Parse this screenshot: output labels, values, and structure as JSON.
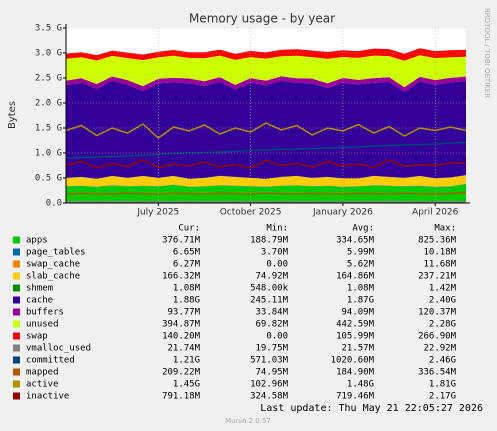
{
  "chart_data": {
    "type": "area",
    "title": "Memory usage - by year",
    "ylabel": "Bytes",
    "side_text": "RRDTOOL / TOBI OETIKER",
    "footer": "Last update: Thu May 21 22:05:27 2026",
    "version": "Munin 2.0.57",
    "categories": [
      null,
      null,
      null,
      null,
      null,
      null,
      "July 2025",
      null,
      null,
      null,
      null,
      null,
      "October 2025",
      null,
      null,
      null,
      null,
      null,
      "January 2026",
      null,
      null,
      null,
      null,
      null,
      "April 2026",
      null,
      null
    ],
    "ylim": [
      0,
      3500000000
    ],
    "yticks": [
      {
        "value": 0,
        "label": "0.0"
      },
      {
        "value": 500000000,
        "label": "0.5 G"
      },
      {
        "value": 1000000000,
        "label": "1.0 G"
      },
      {
        "value": 1500000000,
        "label": "1.5 G"
      },
      {
        "value": 2000000000,
        "label": "2.0 G"
      },
      {
        "value": 2500000000,
        "label": "2.5 G"
      },
      {
        "value": 3000000000,
        "label": "3.0 G"
      },
      {
        "value": 3500000000,
        "label": "3.5 G"
      }
    ],
    "grid": true,
    "summary_headers": [
      "Cur:",
      "Min:",
      "Avg:",
      "Max:"
    ],
    "series": [
      {
        "name": "apps",
        "color": "#00cc00",
        "stacked": true,
        "summary": [
          "376.71M",
          "188.79M",
          "334.65M",
          "825.36M"
        ],
        "values": [
          330000000.0,
          340000000.0,
          320000000.0,
          350000000.0,
          330000000.0,
          340000000.0,
          330000000.0,
          360000000.0,
          320000000.0,
          330000000.0,
          350000000.0,
          340000000.0,
          330000000.0,
          320000000.0,
          340000000.0,
          350000000.0,
          330000000.0,
          340000000.0,
          320000000.0,
          330000000.0,
          350000000.0,
          340000000.0,
          330000000.0,
          340000000.0,
          320000000.0,
          330000000.0,
          377000000.0
        ]
      },
      {
        "name": "page_tables",
        "color": "#0066b3",
        "stacked": true,
        "summary": [
          "6.65M",
          "3.70M",
          "5.99M",
          "10.18M"
        ],
        "values": [
          6000000.0,
          6000000.0,
          6000000.0,
          6000000.0,
          6000000.0,
          6000000.0,
          6000000.0,
          6000000.0,
          6000000.0,
          6000000.0,
          6000000.0,
          6000000.0,
          6000000.0,
          6000000.0,
          6000000.0,
          6000000.0,
          6000000.0,
          6000000.0,
          6000000.0,
          6000000.0,
          6000000.0,
          6000000.0,
          6000000.0,
          6000000.0,
          6000000.0,
          6000000.0,
          6650000.0
        ]
      },
      {
        "name": "swap_cache",
        "color": "#ff8000",
        "stacked": true,
        "summary": [
          "6.27M",
          "0.00",
          "5.62M",
          "11.68M"
        ],
        "values": [
          5000000.0,
          5000000.0,
          6000000.0,
          5000000.0,
          6000000.0,
          5000000.0,
          6000000.0,
          5000000.0,
          6000000.0,
          5000000.0,
          6000000.0,
          5000000.0,
          6000000.0,
          5000000.0,
          6000000.0,
          5000000.0,
          6000000.0,
          5000000.0,
          6000000.0,
          5000000.0,
          6000000.0,
          5000000.0,
          6000000.0,
          5000000.0,
          6000000.0,
          5000000.0,
          6270000.0
        ]
      },
      {
        "name": "slab_cache",
        "color": "#ffcc00",
        "stacked": true,
        "summary": [
          "166.32M",
          "74.92M",
          "164.86M",
          "237.21M"
        ],
        "values": [
          160000000.0,
          170000000.0,
          150000000.0,
          180000000.0,
          160000000.0,
          190000000.0,
          160000000.0,
          170000000.0,
          150000000.0,
          160000000.0,
          180000000.0,
          170000000.0,
          160000000.0,
          150000000.0,
          170000000.0,
          180000000.0,
          160000000.0,
          170000000.0,
          160000000.0,
          150000000.0,
          180000000.0,
          170000000.0,
          160000000.0,
          190000000.0,
          160000000.0,
          170000000.0,
          166000000.0
        ]
      },
      {
        "name": "shmem",
        "color": "#008f00",
        "stacked": true,
        "summary": [
          "1.08M",
          "548.00k",
          "1.08M",
          "1.42M"
        ],
        "values": [
          1000000.0,
          1000000.0,
          1000000.0,
          1000000.0,
          1000000.0,
          1000000.0,
          1000000.0,
          1000000.0,
          1000000.0,
          1000000.0,
          1000000.0,
          1000000.0,
          1000000.0,
          1000000.0,
          1000000.0,
          1000000.0,
          1000000.0,
          1000000.0,
          1000000.0,
          1000000.0,
          1000000.0,
          1000000.0,
          1000000.0,
          1000000.0,
          1000000.0,
          1000000.0,
          1080000.0
        ]
      },
      {
        "name": "cache",
        "color": "#330099",
        "stacked": true,
        "summary": [
          "1.88G",
          "245.11M",
          "1.87G",
          "2.40G"
        ],
        "values": [
          1850000000.0,
          1880000000.0,
          1800000000.0,
          1900000000.0,
          1860000000.0,
          1700000000.0,
          1890000000.0,
          1870000000.0,
          1910000000.0,
          1840000000.0,
          1880000000.0,
          1750000000.0,
          1900000000.0,
          1870000000.0,
          1920000000.0,
          1860000000.0,
          1890000000.0,
          1780000000.0,
          1910000000.0,
          1880000000.0,
          1860000000.0,
          1900000000.0,
          1720000000.0,
          1890000000.0,
          1870000000.0,
          1900000000.0,
          1880000000.0
        ]
      },
      {
        "name": "buffers",
        "color": "#990099",
        "stacked": true,
        "summary": [
          "93.77M",
          "33.84M",
          "94.09M",
          "120.37M"
        ],
        "values": [
          95000000.0,
          92000000.0,
          98000000.0,
          90000000.0,
          94000000.0,
          96000000.0,
          91000000.0,
          93000000.0,
          97000000.0,
          92000000.0,
          95000000.0,
          90000000.0,
          94000000.0,
          96000000.0,
          91000000.0,
          93000000.0,
          95000000.0,
          92000000.0,
          98000000.0,
          90000000.0,
          94000000.0,
          96000000.0,
          91000000.0,
          93000000.0,
          95000000.0,
          92000000.0,
          93800000.0
        ]
      },
      {
        "name": "unused",
        "color": "#ccff00",
        "stacked": true,
        "summary": [
          "394.87M",
          "69.82M",
          "442.59M",
          "2.28G"
        ],
        "values": [
          440000000.0,
          420000000.0,
          470000000.0,
          410000000.0,
          440000000.0,
          520000000.0,
          430000000.0,
          440000000.0,
          410000000.0,
          460000000.0,
          430000000.0,
          500000000.0,
          420000000.0,
          440000000.0,
          400000000.0,
          450000000.0,
          430000000.0,
          490000000.0,
          420000000.0,
          440000000.0,
          450000000.0,
          420000000.0,
          530000000.0,
          430000000.0,
          440000000.0,
          410000000.0,
          395000000.0
        ]
      },
      {
        "name": "swap",
        "color": "#ff0000",
        "stacked": true,
        "summary": [
          "140.20M",
          "0.00",
          "105.99M",
          "266.90M"
        ],
        "values": [
          100000000.0,
          100000000.0,
          105000000.0,
          105000000.0,
          110000000.0,
          110000000.0,
          110000000.0,
          115000000.0,
          115000000.0,
          120000000.0,
          120000000.0,
          120000000.0,
          125000000.0,
          125000000.0,
          130000000.0,
          130000000.0,
          130000000.0,
          135000000.0,
          135000000.0,
          135000000.0,
          140000000.0,
          140000000.0,
          140000000.0,
          140000000.0,
          140000000.0,
          140000000.0,
          140000000.0
        ]
      },
      {
        "name": "vmalloc_used",
        "color": "#808080",
        "stacked": false,
        "summary": [
          "21.74M",
          "19.75M",
          "21.57M",
          "22.92M"
        ],
        "values": [
          22000000.0,
          22000000.0,
          21000000.0,
          22000000.0,
          22000000.0,
          21000000.0,
          22000000.0,
          22000000.0,
          21000000.0,
          22000000.0,
          22000000.0,
          21000000.0,
          22000000.0,
          22000000.0,
          21000000.0,
          22000000.0,
          22000000.0,
          21000000.0,
          22000000.0,
          22000000.0,
          21000000.0,
          22000000.0,
          22000000.0,
          21000000.0,
          22000000.0,
          22000000.0,
          21700000.0
        ]
      },
      {
        "name": "committed",
        "color": "#00487d",
        "stacked": false,
        "summary": [
          "1.21G",
          "571.03M",
          "1020.60M",
          "2.46G"
        ],
        "values": [
          900000000.0,
          910000000.0,
          920000000.0,
          930000000.0,
          940000000.0,
          960000000.0,
          970000000.0,
          990000000.0,
          1000000000.0,
          1010000000.0,
          1020000000.0,
          1030000000.0,
          1050000000.0,
          1060000000.0,
          1070000000.0,
          1080000000.0,
          1090000000.0,
          1100000000.0,
          1110000000.0,
          1120000000.0,
          1140000000.0,
          1150000000.0,
          1160000000.0,
          1170000000.0,
          1180000000.0,
          1200000000.0,
          1210000000.0
        ]
      },
      {
        "name": "mapped",
        "color": "#b35a00",
        "stacked": false,
        "summary": [
          "209.22M",
          "74.95M",
          "184.90M",
          "336.54M"
        ],
        "values": [
          180000000.0,
          190000000.0,
          185000000.0,
          180000000.0,
          195000000.0,
          185000000.0,
          180000000.0,
          190000000.0,
          185000000.0,
          180000000.0,
          190000000.0,
          185000000.0,
          180000000.0,
          195000000.0,
          185000000.0,
          180000000.0,
          190000000.0,
          185000000.0,
          180000000.0,
          190000000.0,
          185000000.0,
          180000000.0,
          195000000.0,
          185000000.0,
          180000000.0,
          190000000.0,
          209000000.0
        ]
      },
      {
        "name": "active",
        "color": "#b38f00",
        "stacked": false,
        "summary": [
          "1.45G",
          "102.96M",
          "1.48G",
          "1.81G"
        ],
        "values": [
          1450000000.0,
          1550000000.0,
          1350000000.0,
          1500000000.0,
          1400000000.0,
          1580000000.0,
          1300000000.0,
          1520000000.0,
          1440000000.0,
          1560000000.0,
          1380000000.0,
          1500000000.0,
          1420000000.0,
          1600000000.0,
          1460000000.0,
          1550000000.0,
          1360000000.0,
          1500000000.0,
          1440000000.0,
          1570000000.0,
          1400000000.0,
          1530000000.0,
          1340000000.0,
          1500000000.0,
          1450000000.0,
          1520000000.0,
          1450000000.0
        ]
      },
      {
        "name": "inactive",
        "color": "#990000",
        "stacked": false,
        "summary": [
          "791.18M",
          "324.58M",
          "719.46M",
          "2.17G"
        ],
        "values": [
          750000000.0,
          840000000.0,
          700000000.0,
          790000000.0,
          730000000.0,
          860000000.0,
          710000000.0,
          780000000.0,
          740000000.0,
          820000000.0,
          720000000.0,
          770000000.0,
          700000000.0,
          850000000.0,
          750000000.0,
          790000000.0,
          720000000.0,
          830000000.0,
          740000000.0,
          780000000.0,
          710000000.0,
          860000000.0,
          730000000.0,
          770000000.0,
          750000000.0,
          800000000.0,
          791000000.0
        ]
      }
    ]
  }
}
